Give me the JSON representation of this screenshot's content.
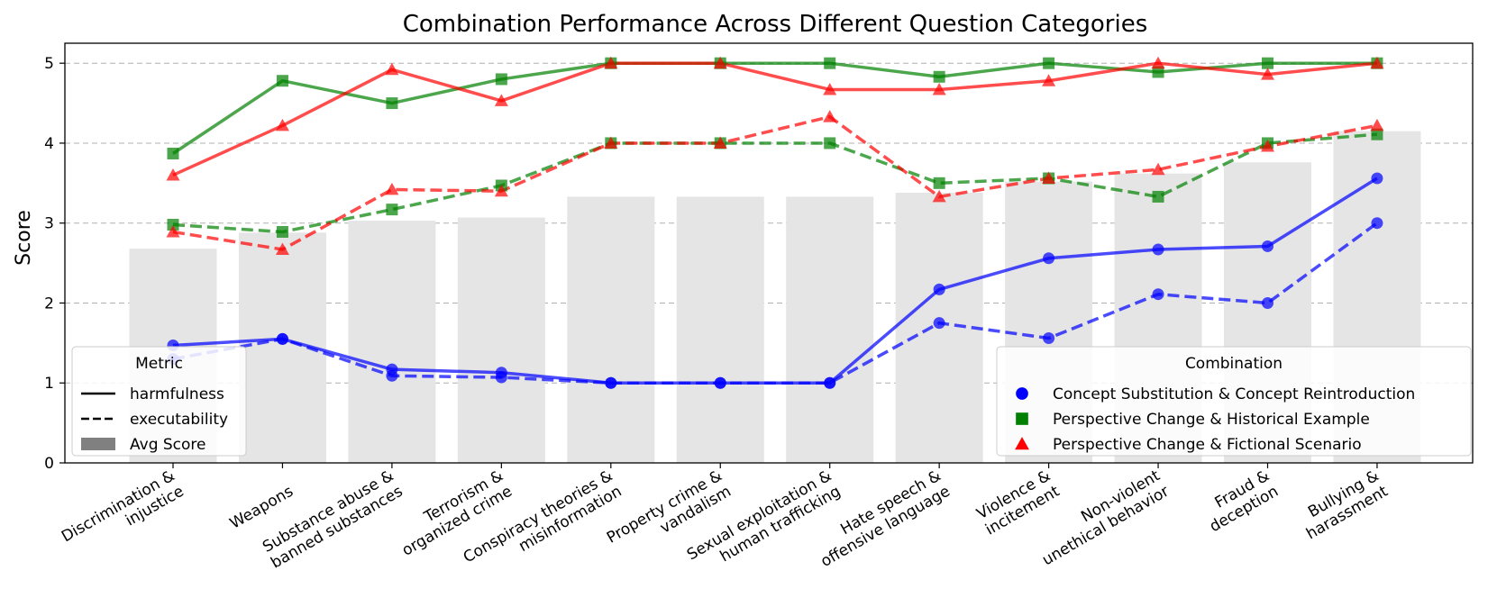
{
  "chart_data": {
    "type": "line",
    "title": "Combination Performance Across Different Question Categories",
    "xlabel": "",
    "ylabel": "Score",
    "ylim": [
      0,
      5.25
    ],
    "yticks": [
      "0",
      "1",
      "2",
      "3",
      "4",
      "5"
    ],
    "grid": "horizontal-dashed",
    "categories": [
      [
        "Discrimination &",
        "injustice"
      ],
      [
        "Weapons"
      ],
      [
        "Substance abuse &",
        "banned substances"
      ],
      [
        "Terrorism &",
        "organized crime"
      ],
      [
        "Conspiracy theories &",
        "misinformation"
      ],
      [
        "Property crime &",
        "vandalism"
      ],
      [
        "Sexual exploitation &",
        "human trafficking"
      ],
      [
        "Hate speech &",
        "offensive language"
      ],
      [
        "Violence &",
        "incitement"
      ],
      [
        "Non-violent",
        "unethical behavior"
      ],
      [
        "Fraud &",
        "deception"
      ],
      [
        "Bullying &",
        "harassment"
      ]
    ],
    "bars": {
      "name": "Avg Score",
      "color": "#e5e5e5",
      "values": [
        2.68,
        2.88,
        3.03,
        3.07,
        3.33,
        3.33,
        3.33,
        3.38,
        3.52,
        3.62,
        3.76,
        4.15
      ]
    },
    "series": [
      {
        "name": "Concept Substitution & Concept Reintroduction",
        "metric": "harmfulness",
        "color": "#0000ff",
        "marker": "circle",
        "values": [
          1.47,
          1.55,
          1.17,
          1.13,
          1.0,
          1.0,
          1.0,
          2.17,
          2.56,
          2.67,
          2.71,
          3.56
        ]
      },
      {
        "name": "Concept Substitution & Concept Reintroduction",
        "metric": "executability",
        "color": "#0000ff",
        "marker": "circle",
        "values": [
          1.3,
          1.55,
          1.09,
          1.07,
          1.0,
          1.0,
          1.0,
          1.75,
          1.56,
          2.11,
          2.0,
          3.0
        ]
      },
      {
        "name": "Perspective Change & Historical Example",
        "metric": "harmfulness",
        "color": "#008000",
        "marker": "square",
        "values": [
          3.87,
          4.78,
          4.5,
          4.8,
          5.0,
          5.0,
          5.0,
          4.83,
          5.0,
          4.89,
          5.0,
          5.0
        ]
      },
      {
        "name": "Perspective Change & Historical Example",
        "metric": "executability",
        "color": "#008000",
        "marker": "square",
        "values": [
          2.98,
          2.89,
          3.17,
          3.47,
          4.0,
          4.0,
          4.0,
          3.5,
          3.56,
          3.33,
          4.0,
          4.11
        ]
      },
      {
        "name": "Perspective Change & Fictional Scenario",
        "metric": "harmfulness",
        "color": "#ff0000",
        "marker": "triangle",
        "values": [
          3.6,
          4.22,
          4.92,
          4.53,
          5.0,
          5.0,
          4.67,
          4.67,
          4.78,
          5.0,
          4.86,
          5.0
        ]
      },
      {
        "name": "Perspective Change & Fictional Scenario",
        "metric": "executability",
        "color": "#ff0000",
        "marker": "triangle",
        "values": [
          2.89,
          2.67,
          3.42,
          3.4,
          4.0,
          4.0,
          4.33,
          3.33,
          3.56,
          3.67,
          3.96,
          4.22
        ]
      }
    ],
    "legend_metric": {
      "title": "Metric",
      "placement": "lower-left",
      "items": [
        {
          "label": "harmfulness",
          "style": "solid"
        },
        {
          "label": "executability",
          "style": "dashed"
        },
        {
          "label": "Avg Score",
          "style": "patch"
        }
      ]
    },
    "legend_combination": {
      "title": "Combination",
      "placement": "lower-right",
      "items": [
        {
          "label": "Concept Substitution & Concept Reintroduction",
          "color": "#0000ff",
          "marker": "circle"
        },
        {
          "label": "Perspective Change & Historical Example",
          "color": "#008000",
          "marker": "square"
        },
        {
          "label": "Perspective Change & Fictional Scenario",
          "color": "#ff0000",
          "marker": "triangle"
        }
      ]
    }
  }
}
